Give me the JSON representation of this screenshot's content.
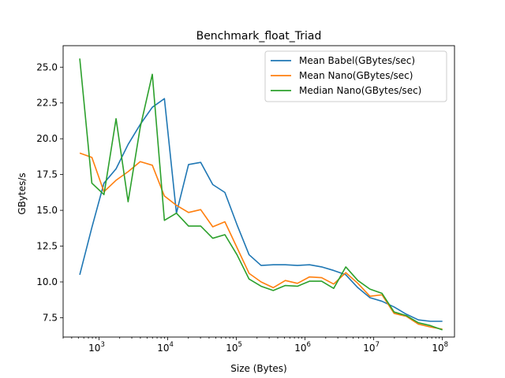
{
  "chart_data": {
    "type": "line",
    "title": "Benchmark_float_Triad",
    "xlabel": "Size (Bytes)",
    "ylabel": "GBytes/s",
    "xscale": "log",
    "xlim": [
      300,
      150000000
    ],
    "ylim": [
      6.15,
      26.5
    ],
    "x_ticks": [
      {
        "value": 1000,
        "base": "10",
        "exp": "3"
      },
      {
        "value": 10000,
        "base": "10",
        "exp": "4"
      },
      {
        "value": 100000,
        "base": "10",
        "exp": "5"
      },
      {
        "value": 1000000,
        "base": "10",
        "exp": "6"
      },
      {
        "value": 10000000,
        "base": "10",
        "exp": "7"
      },
      {
        "value": 100000000,
        "base": "10",
        "exp": "8"
      }
    ],
    "y_ticks": [
      {
        "value": 7.5,
        "label": "7.5"
      },
      {
        "value": 10.0,
        "label": "10.0"
      },
      {
        "value": 12.5,
        "label": "12.5"
      },
      {
        "value": 15.0,
        "label": "15.0"
      },
      {
        "value": 17.5,
        "label": "17.5"
      },
      {
        "value": 20.0,
        "label": "20.0"
      },
      {
        "value": 22.5,
        "label": "22.5"
      },
      {
        "value": 25.0,
        "label": "25.0"
      }
    ],
    "grid": false,
    "legend_position": "top-right",
    "x": [
      524,
      786,
      1180,
      1770,
      2650,
      3980,
      5970,
      8950,
      13400,
      20100,
      30200,
      45300,
      68000,
      102000,
      153000,
      229000,
      344000,
      516000,
      774000,
      1160000,
      1740000,
      2610000,
      3920000,
      5870000,
      8810000,
      13200000,
      19800000,
      29700000,
      44600000,
      66900000,
      100000000
    ],
    "series": [
      {
        "name": "Mean Babel(GBytes/sec)",
        "color": "#1f77b4",
        "values": [
          10.5,
          13.8,
          16.9,
          17.9,
          19.6,
          21.0,
          22.2,
          22.8,
          14.8,
          18.2,
          18.35,
          16.8,
          16.25,
          14.0,
          11.9,
          11.15,
          11.2,
          11.2,
          11.15,
          11.2,
          11.05,
          10.8,
          10.5,
          9.6,
          8.9,
          8.65,
          8.25,
          7.75,
          7.35,
          7.25,
          7.25
        ]
      },
      {
        "name": "Mean Nano(GBytes/sec)",
        "color": "#ff7f0e",
        "values": [
          19.0,
          18.7,
          16.3,
          17.1,
          17.7,
          18.4,
          18.15,
          16.0,
          15.35,
          14.85,
          15.05,
          13.85,
          14.2,
          12.4,
          10.6,
          10.0,
          9.6,
          10.1,
          9.9,
          10.35,
          10.3,
          9.85,
          10.65,
          9.9,
          9.0,
          9.1,
          7.8,
          7.6,
          7.05,
          6.85,
          6.7
        ]
      },
      {
        "name": "Median Nano(GBytes/sec)",
        "color": "#2ca02c",
        "values": [
          25.6,
          16.9,
          16.1,
          21.4,
          15.6,
          20.8,
          24.5,
          14.3,
          14.8,
          13.9,
          13.9,
          13.05,
          13.3,
          11.9,
          10.2,
          9.7,
          9.4,
          9.75,
          9.7,
          10.05,
          10.05,
          9.55,
          11.05,
          10.1,
          9.5,
          9.2,
          7.9,
          7.65,
          7.15,
          6.95,
          6.65
        ]
      }
    ]
  }
}
